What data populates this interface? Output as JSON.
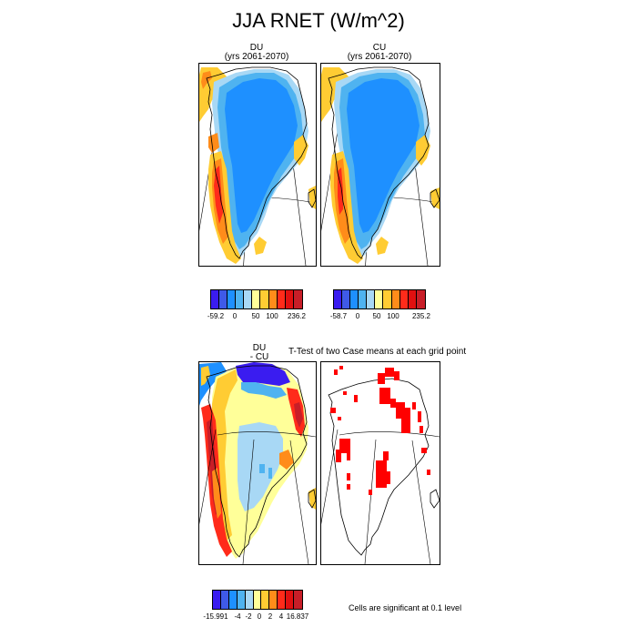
{
  "title": "JJA RNET (W/m^2)",
  "panels": {
    "du": {
      "line1": "DU",
      "line2": "(yrs 2061-2070)"
    },
    "cu": {
      "line1": "CU",
      "line2": "(yrs 2061-2070)"
    },
    "diff": {
      "line1": "DU",
      "line2": "- CU"
    },
    "ttest": {
      "title": "T-Test of two Case means at each grid point"
    }
  },
  "legends": {
    "top_left": {
      "labels": [
        "-59.2",
        "0",
        "50",
        "100",
        "236.2"
      ],
      "colors": [
        "#3a1cf0",
        "#3f5ae8",
        "#1e90ff",
        "#4fb3f0",
        "#a8d8f5",
        "#ffff99",
        "#ffcc33",
        "#ff8c1a",
        "#ff2b1a",
        "#e01010",
        "#c81e28"
      ]
    },
    "top_right": {
      "labels": [
        "-58.7",
        "0",
        "50",
        "100",
        "235.2"
      ],
      "colors": [
        "#3a1cf0",
        "#3f5ae8",
        "#1e90ff",
        "#4fb3f0",
        "#a8d8f5",
        "#ffff99",
        "#ffcc33",
        "#ff8c1a",
        "#ff2b1a",
        "#e01010",
        "#c81e28"
      ]
    },
    "bottom": {
      "labels": [
        "-15.991",
        "-4",
        "-2",
        "0",
        "2",
        "4",
        "16.837"
      ],
      "colors": [
        "#3a1cf0",
        "#3f5ae8",
        "#1e90ff",
        "#4fb3f0",
        "#a8d8f5",
        "#ffff99",
        "#ffcc33",
        "#ff8c1a",
        "#ff2b1a",
        "#e01010",
        "#c81e28"
      ]
    }
  },
  "significance_note": "Cells are significant at 0.1 level",
  "colors": {
    "significant": "#ff0000",
    "coast": "#000000"
  }
}
